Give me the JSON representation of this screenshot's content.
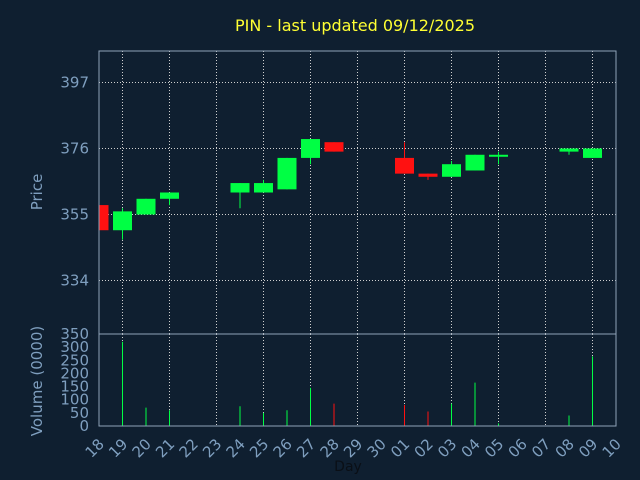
{
  "colors": {
    "background": "#0f1f30",
    "title": "#ffff33",
    "axis_text": "#7f9fbf",
    "frame": "#8fa3b8",
    "grid": "#d0d0d0",
    "up": "#00ff44",
    "down": "#ff1111"
  },
  "chart_data": {
    "type": "candlestick",
    "title": "PIN - last updated 09/12/2025",
    "xlabel": "Day",
    "price_panel": {
      "ylabel": "Price",
      "ylim": [
        317,
        407
      ],
      "yticks": [
        334,
        355,
        376,
        397
      ],
      "grid": true
    },
    "volume_panel": {
      "ylabel": "Volume (0000)",
      "ylim": [
        0,
        350
      ],
      "yticks": [
        0,
        50,
        100,
        150,
        200,
        250,
        300,
        350
      ]
    },
    "x_ticks": [
      "18",
      "19",
      "20",
      "21",
      "22",
      "23",
      "24",
      "25",
      "26",
      "27",
      "28",
      "29",
      "30",
      "01",
      "02",
      "03",
      "04",
      "05",
      "06",
      "07",
      "08",
      "09",
      "10"
    ],
    "x_gridlines": [
      "19",
      "21",
      "23",
      "25",
      "27",
      "29",
      "01",
      "03",
      "05",
      "07",
      "09"
    ],
    "candles": [
      {
        "day": "18",
        "open": 358,
        "high": 358,
        "low": 350,
        "close": 350,
        "volume": 0
      },
      {
        "day": "19",
        "open": 350,
        "high": 357,
        "low": 347,
        "close": 356,
        "volume": 320
      },
      {
        "day": "20",
        "open": 355,
        "high": 360,
        "low": 355,
        "close": 360,
        "volume": 70
      },
      {
        "day": "21",
        "open": 360,
        "high": 362,
        "low": 358,
        "close": 362,
        "volume": 60
      },
      {
        "day": "24",
        "open": 362,
        "high": 365,
        "low": 357,
        "close": 365,
        "volume": 75
      },
      {
        "day": "25",
        "open": 362,
        "high": 366,
        "low": 362,
        "close": 365,
        "volume": 50
      },
      {
        "day": "26",
        "open": 363,
        "high": 373,
        "low": 363,
        "close": 373,
        "volume": 60
      },
      {
        "day": "27",
        "open": 373,
        "high": 379,
        "low": 371,
        "close": 379,
        "volume": 145
      },
      {
        "day": "28",
        "open": 378,
        "high": 378,
        "low": 375,
        "close": 375,
        "volume": 85
      },
      {
        "day": "01",
        "open": 373,
        "high": 378,
        "low": 368,
        "close": 368,
        "volume": 80
      },
      {
        "day": "02",
        "open": 368,
        "high": 368,
        "low": 366,
        "close": 367,
        "volume": 55
      },
      {
        "day": "03",
        "open": 367,
        "high": 372,
        "low": 367,
        "close": 371,
        "volume": 85
      },
      {
        "day": "04",
        "open": 369,
        "high": 374,
        "low": 369,
        "close": 374,
        "volume": 165
      },
      {
        "day": "05",
        "open": 374,
        "high": 375,
        "low": 371,
        "close": 374,
        "volume": 10
      },
      {
        "day": "08",
        "open": 375,
        "high": 376,
        "low": 374,
        "close": 376,
        "volume": 40
      },
      {
        "day": "09",
        "open": 373,
        "high": 376,
        "low": 373,
        "close": 376,
        "volume": 265
      }
    ]
  }
}
